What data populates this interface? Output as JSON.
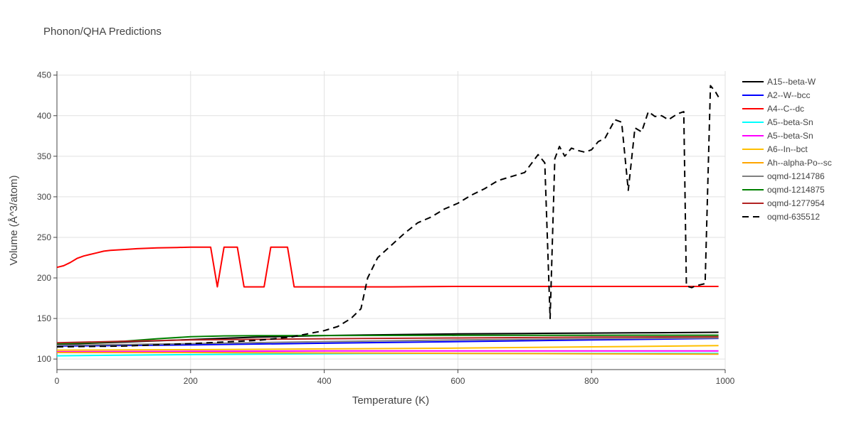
{
  "chart_data": {
    "type": "line",
    "title": "Phonon/QHA Predictions",
    "xlabel": "Temperature (K)",
    "ylabel": "Volume (Å^3/atom)",
    "xlim": [
      0,
      1000
    ],
    "ylim": [
      87,
      455
    ],
    "xticks": [
      0,
      200,
      400,
      600,
      800,
      1000
    ],
    "yticks": [
      100,
      150,
      200,
      250,
      300,
      350,
      400,
      450
    ],
    "grid": true,
    "legend_position": "right",
    "series": [
      {
        "name": "A15--beta-W",
        "color": "#000000",
        "dash": "solid",
        "x": [
          0,
          100,
          200,
          300,
          400,
          500,
          600,
          700,
          800,
          900,
          990
        ],
        "y": [
          118,
          121,
          124,
          127,
          129,
          130,
          131,
          131.5,
          132,
          132.5,
          133
        ]
      },
      {
        "name": "A2--W--bcc",
        "color": "#0000ff",
        "dash": "solid",
        "x": [
          0,
          200,
          400,
          600,
          800,
          990
        ],
        "y": [
          116,
          117.5,
          119.5,
          121.5,
          123.5,
          125.5
        ]
      },
      {
        "name": "A4--C--dc",
        "color": "#ff0000",
        "dash": "solid",
        "x": [
          0,
          10,
          20,
          30,
          40,
          50,
          60,
          70,
          80,
          100,
          120,
          150,
          180,
          200,
          230,
          240,
          250,
          260,
          270,
          280,
          290,
          300,
          310,
          320,
          330,
          340,
          345,
          355,
          400,
          500,
          600,
          700,
          800,
          900,
          990
        ],
        "y": [
          213,
          215,
          219,
          224,
          227,
          229,
          231,
          233,
          234,
          235,
          236,
          237,
          237.5,
          238,
          238,
          189,
          238,
          238,
          238,
          189,
          189,
          189,
          189,
          238,
          238,
          238,
          238,
          189,
          189,
          189,
          189.5,
          189.5,
          189.5,
          189.5,
          189.5
        ]
      },
      {
        "name": "A5--beta-Sn",
        "color": "#00ffff",
        "dash": "solid",
        "x": [
          0,
          200,
          400,
          600,
          800,
          990
        ],
        "y": [
          104,
          105.5,
          106.5,
          107,
          107,
          107
        ]
      },
      {
        "name": "A5--beta-Sn",
        "color": "#ff00ff",
        "dash": "solid",
        "x": [
          0,
          200,
          400,
          600,
          800,
          990
        ],
        "y": [
          109,
          109.5,
          110,
          110,
          110,
          110
        ]
      },
      {
        "name": "A6--In--bct",
        "color": "#ffbf00",
        "dash": "solid",
        "x": [
          0,
          200,
          400,
          600,
          800,
          990
        ],
        "y": [
          111,
          111.5,
          112.5,
          113.5,
          115,
          116.5
        ]
      },
      {
        "name": "Ah--alpha-Po--sc",
        "color": "#ffa500",
        "dash": "solid",
        "x": [
          0,
          200,
          400,
          600,
          800,
          990
        ],
        "y": [
          108,
          108,
          107.5,
          107,
          106.5,
          106
        ]
      },
      {
        "name": "oqmd-1214786",
        "color": "#808080",
        "dash": "solid",
        "x": [
          0,
          200,
          400,
          600,
          800,
          990
        ],
        "y": [
          117,
          119,
          121.5,
          123.5,
          125,
          126
        ]
      },
      {
        "name": "oqmd-1214875",
        "color": "#008000",
        "dash": "solid",
        "x": [
          0,
          50,
          100,
          150,
          200,
          250,
          300,
          400,
          600,
          800,
          990
        ],
        "y": [
          119,
          120,
          122,
          125,
          127.5,
          128.5,
          128.8,
          129,
          129.2,
          129.3,
          129.4
        ]
      },
      {
        "name": "oqmd-1277954",
        "color": "#b22222",
        "dash": "solid",
        "x": [
          0,
          100,
          200,
          400,
          600,
          800,
          990
        ],
        "y": [
          120,
          122,
          123.5,
          125,
          126,
          127,
          127.5
        ]
      },
      {
        "name": "oqmd-635512",
        "color": "#000000",
        "dash": "dash",
        "x": [
          0,
          100,
          200,
          300,
          350,
          400,
          420,
          440,
          455,
          465,
          480,
          500,
          520,
          540,
          560,
          580,
          600,
          620,
          640,
          660,
          680,
          700,
          720,
          730,
          738,
          745,
          752,
          760,
          770,
          780,
          790,
          800,
          810,
          820,
          835,
          845,
          855,
          865,
          875,
          885,
          895,
          905,
          915,
          928,
          938,
          942,
          950,
          955,
          970,
          978,
          985,
          990
        ],
        "y": [
          115,
          116,
          119,
          123,
          127,
          135,
          140,
          150,
          162,
          200,
          225,
          240,
          255,
          268,
          275,
          285,
          292,
          302,
          310,
          320,
          325,
          330,
          352,
          342,
          150,
          347,
          362,
          350,
          360,
          357,
          355,
          358,
          368,
          372,
          395,
          392,
          308,
          385,
          380,
          405,
          399,
          400,
          395,
          402,
          405,
          190,
          188,
          190,
          193,
          437,
          430,
          423
        ]
      }
    ]
  }
}
